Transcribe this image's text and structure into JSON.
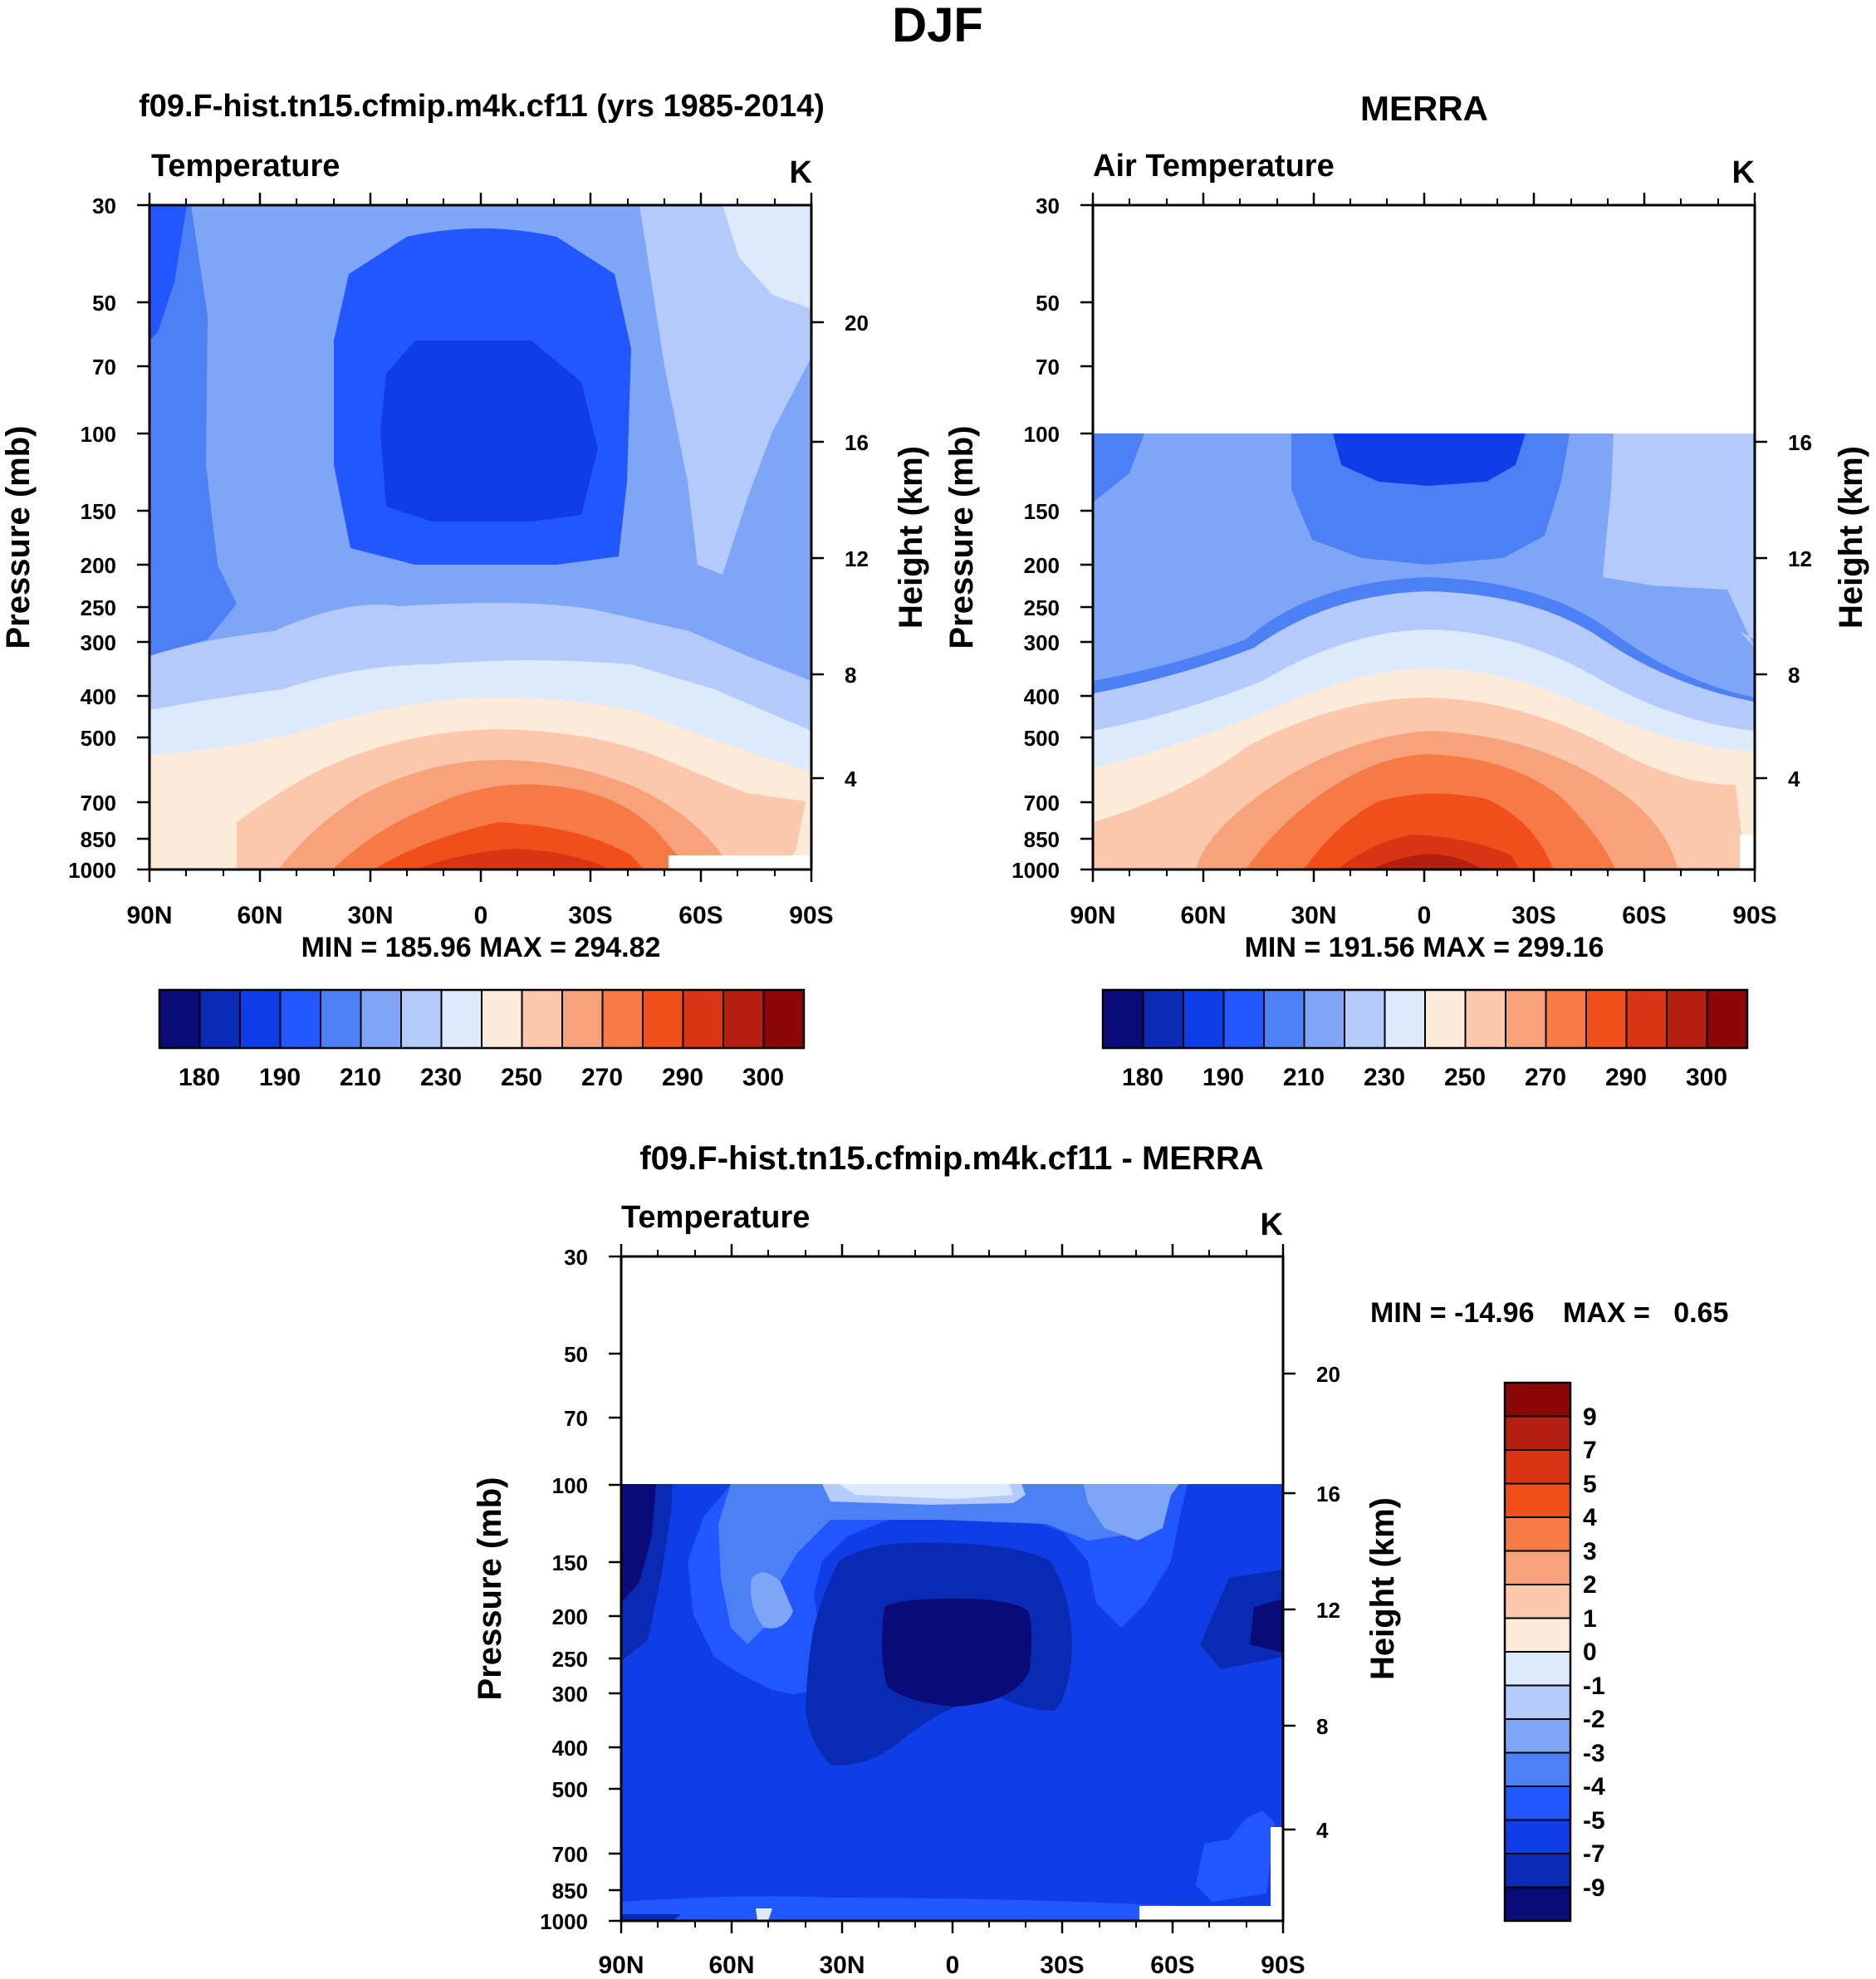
{
  "figure_title": "DJF",
  "chart_data": [
    {
      "type": "heatmap",
      "panel": "model",
      "title": "f09.F-hist.tn15.cfmip.m4k.cf11 (yrs 1985-2014)",
      "left_label": "Temperature",
      "units": "K",
      "ylabel": "Pressure (mb)",
      "ylabel_right": "Height (km)",
      "stats": "MIN = 185.96  MAX = 294.82",
      "x_ticks": [
        "90N",
        "60N",
        "30N",
        "0",
        "30S",
        "60S",
        "90S"
      ],
      "y_ticks": [
        "30",
        "50",
        "70",
        "100",
        "150",
        "200",
        "250",
        "300",
        "400",
        "500",
        "700",
        "850",
        "1000"
      ],
      "height_ticks": [
        "20",
        "16",
        "12",
        "8",
        "4"
      ],
      "xlim": [
        90,
        -90
      ],
      "ylim": [
        1000,
        30
      ],
      "data_top_pressure": 30,
      "colorbar_labels": [
        "180",
        "190",
        "210",
        "230",
        "250",
        "270",
        "290",
        "300"
      ],
      "levels": [
        180,
        185,
        190,
        200,
        210,
        220,
        230,
        240,
        250,
        260,
        270,
        280,
        290,
        295,
        300
      ]
    },
    {
      "type": "heatmap",
      "panel": "obs",
      "title": "MERRA",
      "left_label": "Air Temperature",
      "units": "K",
      "ylabel": "Pressure (mb)",
      "ylabel_right": "Height (km)",
      "stats": "MIN = 191.56  MAX = 299.16",
      "x_ticks": [
        "90N",
        "60N",
        "30N",
        "0",
        "30S",
        "60S",
        "90S"
      ],
      "y_ticks": [
        "30",
        "50",
        "70",
        "100",
        "150",
        "200",
        "250",
        "300",
        "400",
        "500",
        "700",
        "850",
        "1000"
      ],
      "height_ticks": [
        "16",
        "12",
        "8",
        "4"
      ],
      "xlim": [
        90,
        -90
      ],
      "ylim": [
        1000,
        30
      ],
      "data_top_pressure": 100,
      "colorbar_labels": [
        "180",
        "190",
        "210",
        "230",
        "250",
        "270",
        "290",
        "300"
      ],
      "levels": [
        180,
        185,
        190,
        200,
        210,
        220,
        230,
        240,
        250,
        260,
        270,
        280,
        290,
        295,
        300
      ]
    },
    {
      "type": "heatmap",
      "panel": "diff",
      "title": "f09.F-hist.tn15.cfmip.m4k.cf11 - MERRA",
      "left_label": "Temperature",
      "units": "K",
      "ylabel": "Pressure (mb)",
      "ylabel_right": "Height (km)",
      "stats_min": "MIN = -14.96",
      "stats_max": "MAX =   0.65",
      "x_ticks": [
        "90N",
        "60N",
        "30N",
        "0",
        "30S",
        "60S",
        "90S"
      ],
      "y_ticks": [
        "30",
        "50",
        "70",
        "100",
        "150",
        "200",
        "250",
        "300",
        "400",
        "500",
        "700",
        "850",
        "1000"
      ],
      "height_ticks": [
        "20",
        "16",
        "12",
        "8",
        "4"
      ],
      "xlim": [
        90,
        -90
      ],
      "ylim": [
        1000,
        30
      ],
      "data_top_pressure": 100,
      "colorbar_labels": [
        "9",
        "7",
        "5",
        "4",
        "3",
        "2",
        "1",
        "0",
        "-1",
        "-2",
        "-3",
        "-4",
        "-5",
        "-7",
        "-9"
      ],
      "levels": [
        -9,
        -7,
        -5,
        -4,
        -3,
        -2,
        -1,
        0,
        1,
        2,
        3,
        4,
        5,
        7,
        9
      ]
    }
  ],
  "palette": [
    "#0a0a78",
    "#0a2ab4",
    "#0f3ee6",
    "#2257ff",
    "#4d80f5",
    "#7fa6f6",
    "#b3cafa",
    "#dde9fc",
    "#fdebd9",
    "#fbc8ad",
    "#f7a27a",
    "#f57a46",
    "#f04f1c",
    "#d93414",
    "#b51f10",
    "#8b0606"
  ]
}
